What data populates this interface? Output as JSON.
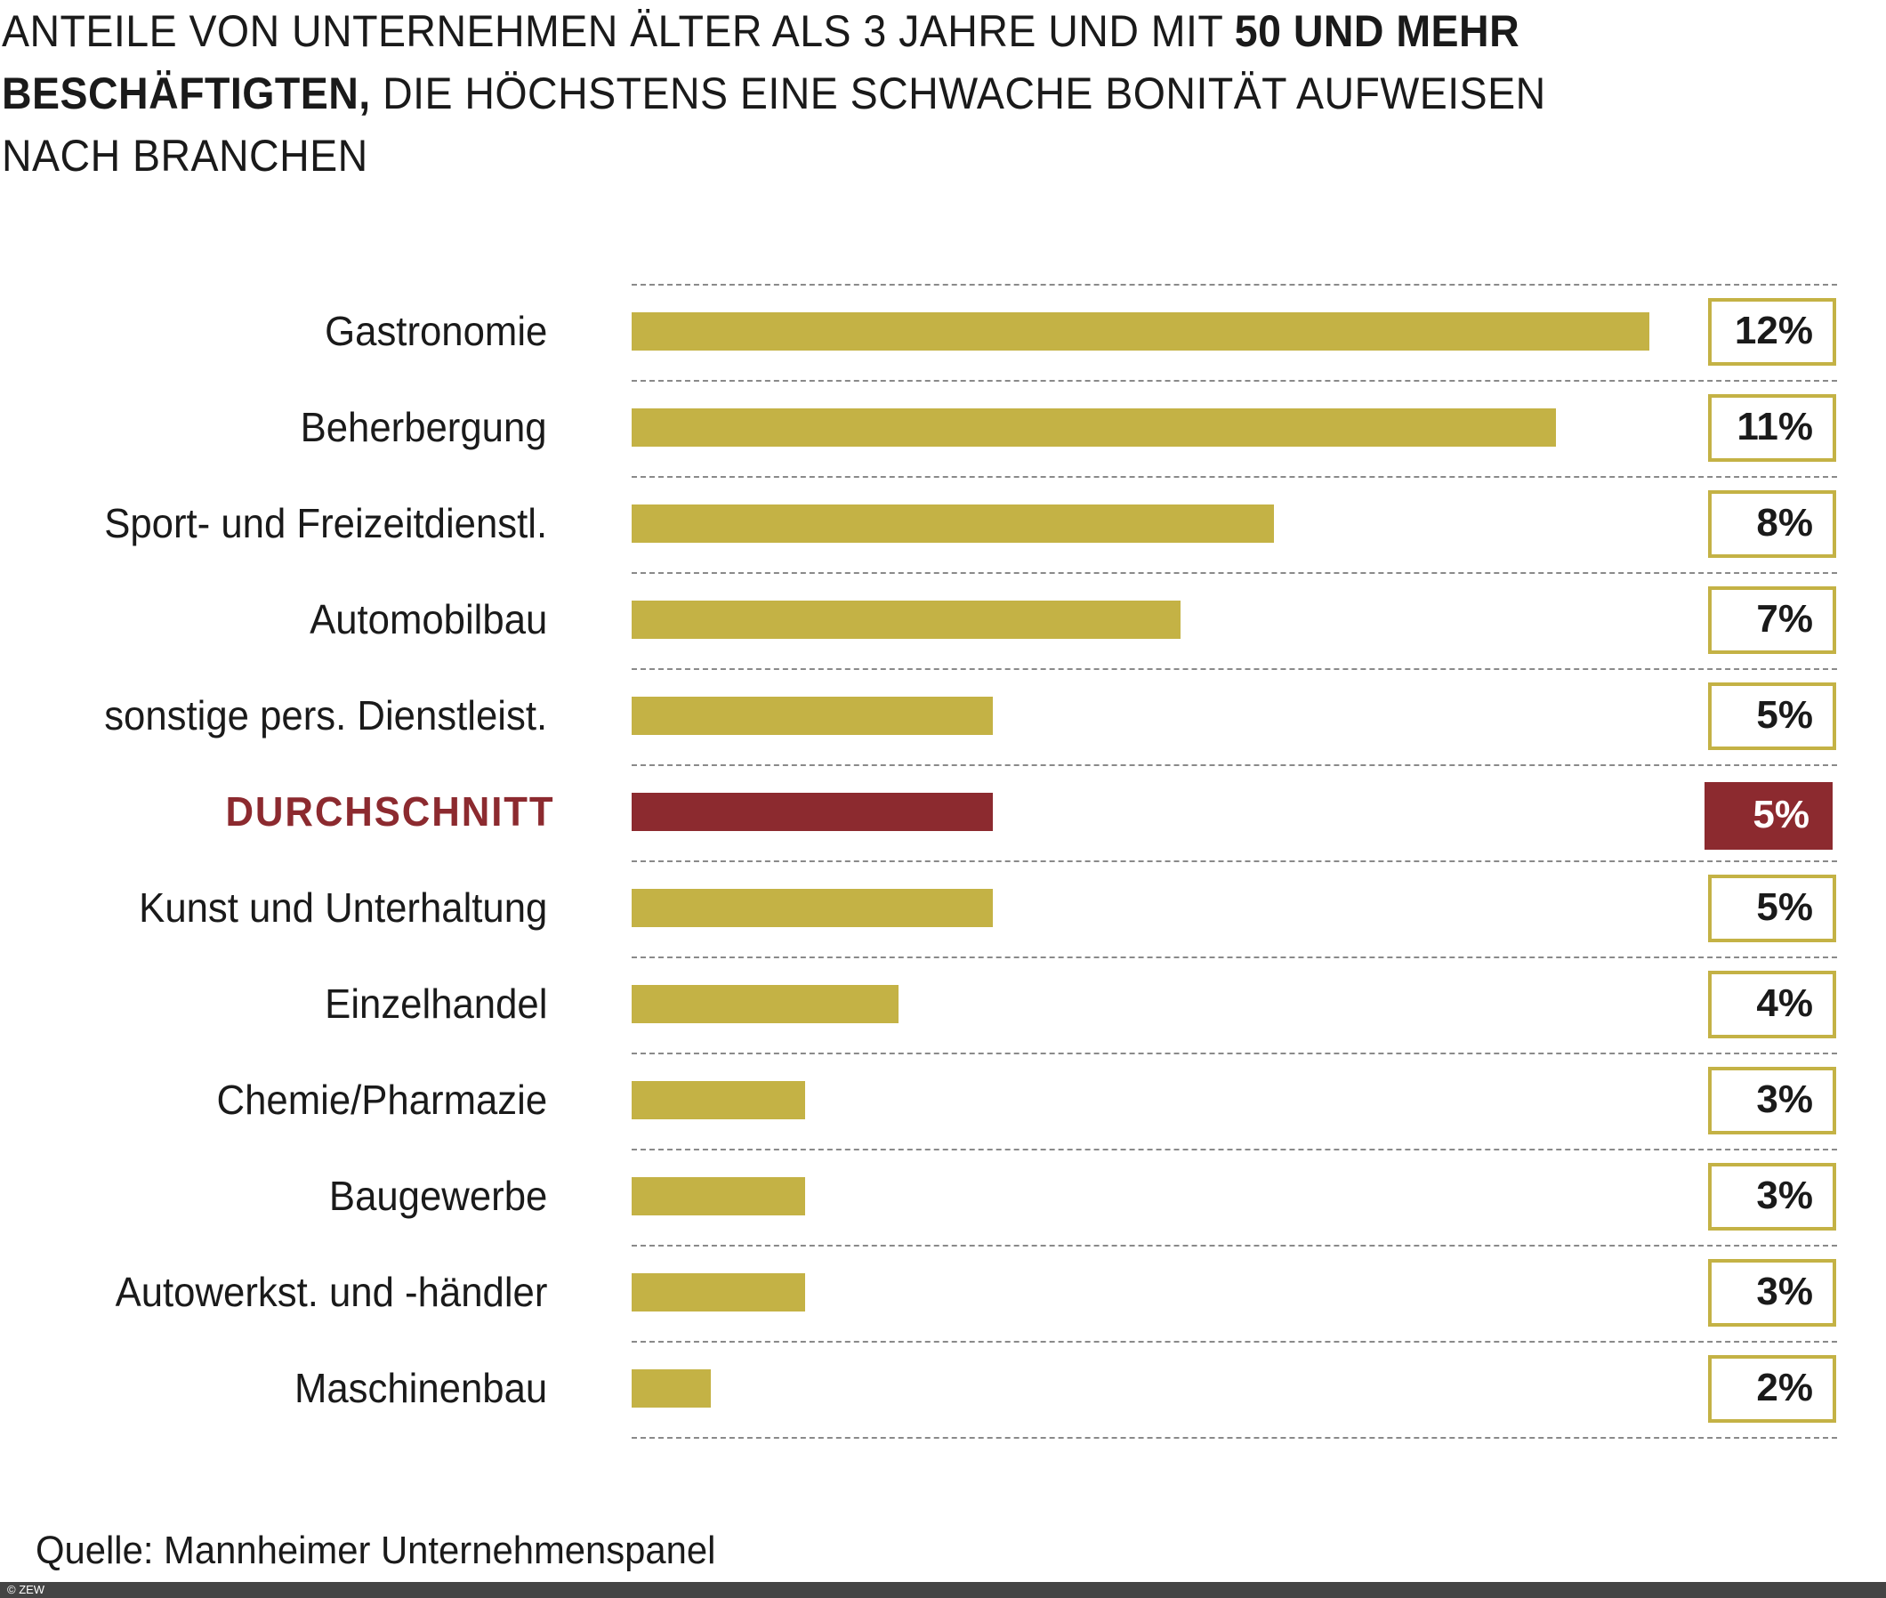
{
  "chart_data": {
    "type": "bar",
    "orientation": "horizontal",
    "title_lines": [
      {
        "normal": "ANTEILE VON UNTERNEHMEN ÄLTER ALS 3 JAHRE UND MIT ",
        "bold": "50 UND MEHR",
        "after": ""
      },
      {
        "normal": "",
        "bold": "BESCHÄFTIGTEN,",
        "after": " DIE HÖCHSTENS EINE SCHWACHE BONITÄT AUFWEISEN"
      },
      {
        "normal": "NACH BRANCHEN",
        "bold": "",
        "after": ""
      }
    ],
    "categories": [
      "Gastronomie",
      "Beherbergung",
      "Sport- und Freizeitdienstl.",
      "Automobilbau",
      "sonstige pers. Dienstleist.",
      "DURCHSCHNITT",
      "Kunst und Unterhaltung",
      "Einzelhandel",
      "Chemie/Pharmazie",
      "Baugewerbe",
      "Autowerkst. und -händler",
      "Maschinenbau"
    ],
    "values": [
      12,
      11,
      8,
      7,
      5,
      5,
      5,
      4,
      3,
      3,
      3,
      2
    ],
    "value_labels": [
      "12%",
      "11%",
      "8%",
      "7%",
      "5%",
      "5%",
      "5%",
      "4%",
      "3%",
      "3%",
      "3%",
      "2%"
    ],
    "highlight_index": 5,
    "unit": "%",
    "grid": true,
    "colors": {
      "bar": "#c4b245",
      "highlight": "#8c2a2f",
      "grid": "#8a8a8a"
    },
    "source": "Quelle: Mannheimer Unternehmenspanel"
  },
  "footer": {
    "copyright": "© ZEW"
  }
}
